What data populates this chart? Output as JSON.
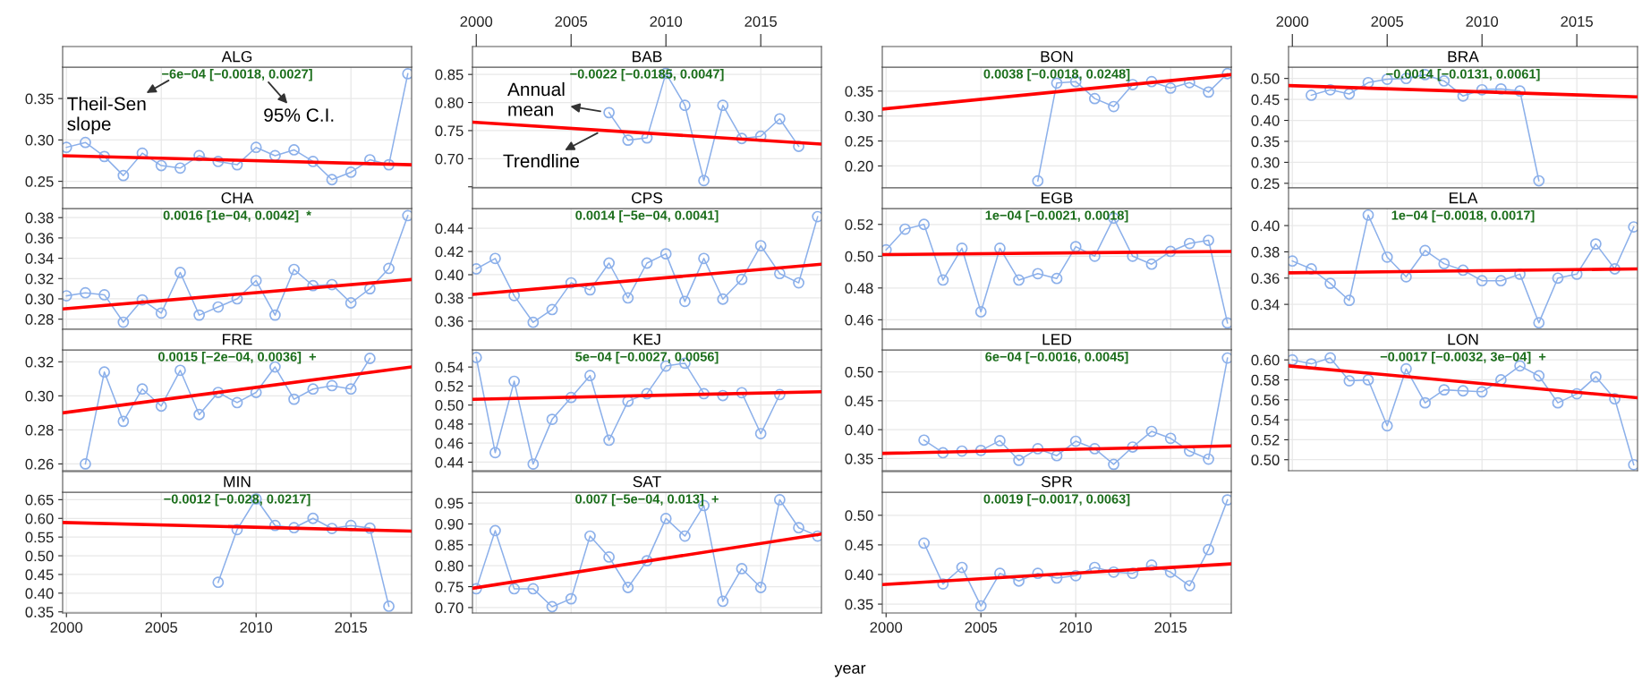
{
  "chart_data": [
    {
      "type": "line",
      "title": "ALG",
      "xlim": [
        1999.8,
        2018.2
      ],
      "xticks": [
        2000,
        2005,
        2010,
        2015
      ],
      "ylim": [
        0.242,
        0.388
      ],
      "yticks": [
        0.25,
        {
          "value": 0.3,
          "label": "0.30"
        },
        0.35
      ],
      "grid": true,
      "tick_labels": "y",
      "marker": "circle",
      "series": [
        {
          "color": "#8cb0ea",
          "x": [
            2000,
            2001,
            2002,
            2003,
            2004,
            2005,
            2006,
            2007,
            2008,
            2009,
            2010,
            2011,
            2012,
            2013,
            2014,
            2015,
            2016,
            2017,
            2018
          ],
          "values": [
            0.291,
            0.297,
            0.28,
            0.257,
            0.284,
            0.269,
            0.266,
            0.281,
            0.274,
            0.27,
            0.291,
            0.281,
            0.288,
            0.274,
            0.252,
            0.261,
            0.276,
            0.27,
            0.38
          ]
        },
        {
          "type": "line",
          "marker": "none",
          "color": "#ff0000",
          "x": [
            1999.8,
            2018.2
          ],
          "values": [
            0.281,
            0.27
          ]
        }
      ],
      "annotations": [
        "−6e−04 [−0.0018, 0.0027]",
        "Theil-Sen\nslope",
        "95% C.I."
      ]
    },
    {
      "type": "line",
      "title": "BAB",
      "xlim": [
        1999.8,
        2018.2
      ],
      "xticks": [
        2000,
        2005,
        2010,
        2015
      ],
      "x2lim": [
        1999.8,
        2018.2
      ],
      "x2ticks": [
        2000,
        2005,
        2010,
        2015
      ],
      "ylim": [
        0.648,
        0.863
      ],
      "yticks": [
        {
          "value": 0.65,
          "label": null
        },
        {
          "value": 0.7,
          "label": "0.70"
        },
        0.75,
        {
          "value": 0.8,
          "label": "0.80"
        },
        0.85
      ],
      "grid": true,
      "tick_labels": "y",
      "marker": "circle",
      "series": [
        {
          "color": "#8cb0ea",
          "x": [
            2007,
            2008,
            2009,
            2010,
            2011,
            2012,
            2013,
            2014,
            2015,
            2016,
            2017
          ],
          "values": [
            0.782,
            0.733,
            0.737,
            0.852,
            0.795,
            0.661,
            0.795,
            0.736,
            0.74,
            0.771,
            0.722
          ]
        },
        {
          "type": "line",
          "marker": "none",
          "color": "#ff0000",
          "x": [
            1999.8,
            2018.2
          ],
          "values": [
            0.765,
            0.726
          ]
        }
      ],
      "annotations": [
        "−0.0022 [−0.0185, 0.0047]",
        {
          "text": "Annual\nmean",
          "x": 2007,
          "y": 0.782
        },
        {
          "text": "Trendline",
          "x": 2006.8,
          "y": 0.753
        }
      ]
    },
    {
      "type": "line",
      "title": "BON",
      "xlim": [
        1999.8,
        2018.2
      ],
      "xticks": [
        2000,
        2005,
        2010,
        2015
      ],
      "ylim": [
        0.156,
        0.398
      ],
      "yticks": [
        {
          "value": 0.2,
          "label": "0.20"
        },
        0.25,
        {
          "value": 0.3,
          "label": "0.30"
        },
        0.35
      ],
      "grid": true,
      "tick_labels": "y",
      "marker": "circle",
      "series": [
        {
          "color": "#8cb0ea",
          "x": [
            2008,
            2009,
            2010,
            2011,
            2012,
            2013,
            2014,
            2015,
            2016,
            2017,
            2018
          ],
          "values": [
            0.17,
            0.366,
            0.369,
            0.335,
            0.319,
            0.363,
            0.369,
            0.356,
            0.367,
            0.348,
            0.385
          ]
        },
        {
          "type": "line",
          "marker": "none",
          "color": "#ff0000",
          "x": [
            1999.8,
            2018.2
          ],
          "values": [
            0.314,
            0.383
          ]
        }
      ],
      "annotations": [
        "0.0038 [−0.0018, 0.0248]"
      ]
    },
    {
      "type": "line",
      "title": "BRA",
      "xlim": [
        1999.8,
        2018.2
      ],
      "xticks": [
        2000,
        2005,
        2010,
        2015
      ],
      "x2lim": [
        1999.8,
        2018.2
      ],
      "x2ticks": [
        2000,
        2005,
        2010,
        2015
      ],
      "ylim": [
        0.239,
        0.527
      ],
      "yticks": [
        0.25,
        {
          "value": 0.3,
          "label": "0.30"
        },
        0.35,
        {
          "value": 0.4,
          "label": "0.40"
        },
        0.45,
        {
          "value": 0.5,
          "label": "0.50"
        }
      ],
      "grid": true,
      "tick_labels": "y",
      "marker": "circle",
      "series": [
        {
          "color": "#8cb0ea",
          "x": [
            2001,
            2002,
            2003,
            2004,
            2005,
            2006,
            2007,
            2008,
            2009,
            2010,
            2011,
            2012,
            2013
          ],
          "values": [
            0.46,
            0.473,
            0.463,
            0.49,
            0.498,
            0.5,
            0.509,
            0.494,
            0.458,
            0.473,
            0.475,
            0.47,
            0.256
          ]
        },
        {
          "type": "line",
          "marker": "none",
          "color": "#ff0000",
          "x": [
            1999.8,
            2018.2
          ],
          "values": [
            0.483,
            0.456
          ]
        }
      ],
      "annotations": [
        "−0.0014 [−0.0131, 0.0061]"
      ]
    },
    {
      "type": "line",
      "title": "CHA",
      "xlim": [
        1999.8,
        2018.2
      ],
      "xticks": [
        2000,
        2005,
        2010,
        2015
      ],
      "ylim": [
        0.27,
        0.389
      ],
      "yticks": [
        0.28,
        {
          "value": 0.3,
          "label": "0.30"
        },
        0.32,
        0.34,
        0.36,
        0.38
      ],
      "grid": true,
      "tick_labels": "y",
      "marker": "circle",
      "series": [
        {
          "color": "#8cb0ea",
          "x": [
            2000,
            2001,
            2002,
            2003,
            2004,
            2005,
            2006,
            2007,
            2008,
            2009,
            2010,
            2011,
            2012,
            2013,
            2014,
            2015,
            2016,
            2017,
            2018
          ],
          "values": [
            0.303,
            0.306,
            0.304,
            0.277,
            0.299,
            0.286,
            0.326,
            0.284,
            0.292,
            0.3,
            0.318,
            0.284,
            0.329,
            0.313,
            0.314,
            0.296,
            0.31,
            0.33,
            0.382
          ]
        },
        {
          "type": "line",
          "marker": "none",
          "color": "#ff0000",
          "x": [
            1999.8,
            2018.2
          ],
          "values": [
            0.29,
            0.319
          ]
        }
      ],
      "annotations": [
        "0.0016 [1e−04, 0.0042]  *"
      ]
    },
    {
      "type": "line",
      "title": "CPS",
      "xlim": [
        1999.8,
        2018.2
      ],
      "xticks": [
        2000,
        2005,
        2010,
        2015
      ],
      "ylim": [
        0.353,
        0.457
      ],
      "yticks": [
        0.36,
        0.38,
        {
          "value": 0.4,
          "label": "0.40"
        },
        0.42,
        0.44
      ],
      "grid": true,
      "tick_labels": "y",
      "marker": "circle",
      "series": [
        {
          "color": "#8cb0ea",
          "x": [
            2000,
            2001,
            2002,
            2003,
            2004,
            2005,
            2006,
            2007,
            2008,
            2009,
            2010,
            2011,
            2012,
            2013,
            2014,
            2015,
            2016,
            2017,
            2018
          ],
          "values": [
            0.405,
            0.414,
            0.382,
            0.359,
            0.37,
            0.393,
            0.387,
            0.41,
            0.38,
            0.41,
            0.418,
            0.377,
            0.414,
            0.379,
            0.396,
            0.425,
            0.401,
            0.393,
            0.45
          ]
        },
        {
          "type": "line",
          "marker": "none",
          "color": "#ff0000",
          "x": [
            1999.8,
            2018.2
          ],
          "values": [
            0.383,
            0.409
          ]
        }
      ],
      "annotations": [
        "0.0014 [−5e−04, 0.0041]"
      ]
    },
    {
      "type": "line",
      "title": "EGB",
      "xlim": [
        1999.8,
        2018.2
      ],
      "xticks": [
        2000,
        2005,
        2010,
        2015
      ],
      "ylim": [
        0.454,
        0.53
      ],
      "yticks": [
        0.46,
        0.48,
        {
          "value": 0.5,
          "label": "0.50"
        },
        0.52
      ],
      "grid": true,
      "tick_labels": "y",
      "marker": "circle",
      "series": [
        {
          "color": "#8cb0ea",
          "x": [
            2000,
            2001,
            2002,
            2003,
            2004,
            2005,
            2006,
            2007,
            2008,
            2009,
            2010,
            2011,
            2012,
            2013,
            2014,
            2015,
            2016,
            2017,
            2018
          ],
          "values": [
            0.504,
            0.517,
            0.52,
            0.485,
            0.505,
            0.465,
            0.505,
            0.485,
            0.489,
            0.486,
            0.506,
            0.5,
            0.524,
            0.5,
            0.495,
            0.503,
            0.508,
            0.51,
            0.458
          ]
        },
        {
          "type": "line",
          "marker": "none",
          "color": "#ff0000",
          "x": [
            1999.8,
            2018.2
          ],
          "values": [
            0.501,
            0.503
          ]
        }
      ],
      "annotations": [
        "1e−04 [−0.0021, 0.0018]"
      ]
    },
    {
      "type": "line",
      "title": "ELA",
      "xlim": [
        1999.8,
        2018.2
      ],
      "xticks": [
        2000,
        2005,
        2010,
        2015
      ],
      "ylim": [
        0.321,
        0.413
      ],
      "yticks": [
        0.34,
        0.36,
        0.38,
        {
          "value": 0.4,
          "label": "0.40"
        }
      ],
      "grid": true,
      "tick_labels": "y",
      "marker": "circle",
      "series": [
        {
          "color": "#8cb0ea",
          "x": [
            2000,
            2001,
            2002,
            2003,
            2004,
            2005,
            2006,
            2007,
            2008,
            2009,
            2010,
            2011,
            2012,
            2013,
            2014,
            2015,
            2016,
            2017,
            2018
          ],
          "values": [
            0.373,
            0.367,
            0.356,
            0.343,
            0.408,
            0.376,
            0.361,
            0.381,
            0.371,
            0.366,
            0.358,
            0.358,
            0.363,
            0.326,
            0.36,
            0.363,
            0.386,
            0.367,
            0.399
          ]
        },
        {
          "type": "line",
          "marker": "none",
          "color": "#ff0000",
          "x": [
            1999.8,
            2018.2
          ],
          "values": [
            0.364,
            0.367
          ]
        }
      ],
      "annotations": [
        "1e−04 [−0.0018, 0.0017]"
      ]
    },
    {
      "type": "line",
      "title": "FRE",
      "xlim": [
        1999.8,
        2018.2
      ],
      "xticks": [
        2000,
        2005,
        2010,
        2015
      ],
      "ylim": [
        0.256,
        0.327
      ],
      "yticks": [
        0.26,
        0.28,
        {
          "value": 0.3,
          "label": "0.30"
        },
        0.32
      ],
      "grid": true,
      "tick_labels": "y",
      "marker": "circle",
      "series": [
        {
          "color": "#8cb0ea",
          "x": [
            2001,
            2002,
            2003,
            2004,
            2005,
            2006,
            2007,
            2008,
            2009,
            2010,
            2011,
            2012,
            2013,
            2014,
            2015,
            2016
          ],
          "values": [
            0.26,
            0.314,
            0.285,
            0.304,
            0.294,
            0.315,
            0.289,
            0.302,
            0.296,
            0.302,
            0.317,
            0.298,
            0.304,
            0.306,
            0.304,
            0.322
          ]
        },
        {
          "type": "line",
          "marker": "none",
          "color": "#ff0000",
          "x": [
            1999.8,
            2018.2
          ],
          "values": [
            0.29,
            0.317
          ]
        }
      ],
      "annotations": [
        "0.0015 [−2e−04, 0.0036]  +"
      ]
    },
    {
      "type": "line",
      "title": "KEJ",
      "xlim": [
        1999.8,
        2018.2
      ],
      "xticks": [
        2000,
        2005,
        2010,
        2015
      ],
      "ylim": [
        0.431,
        0.558
      ],
      "yticks": [
        0.44,
        0.46,
        0.48,
        {
          "value": 0.5,
          "label": "0.50"
        },
        0.52,
        0.54
      ],
      "grid": true,
      "tick_labels": "y",
      "marker": "circle",
      "series": [
        {
          "color": "#8cb0ea",
          "x": [
            2000,
            2001,
            2002,
            2003,
            2004,
            2005,
            2006,
            2007,
            2008,
            2009,
            2010,
            2011,
            2012,
            2013,
            2014,
            2015,
            2016
          ],
          "values": [
            0.55,
            0.45,
            0.525,
            0.438,
            0.485,
            0.508,
            0.531,
            0.463,
            0.504,
            0.512,
            0.541,
            0.544,
            0.512,
            0.51,
            0.513,
            0.47,
            0.511
          ]
        },
        {
          "type": "line",
          "marker": "none",
          "color": "#ff0000",
          "x": [
            1999.8,
            2018.2
          ],
          "values": [
            0.506,
            0.514
          ]
        }
      ],
      "annotations": [
        "5e−04 [−0.0027, 0.0056]"
      ]
    },
    {
      "type": "line",
      "title": "LED",
      "xlim": [
        1999.8,
        2018.2
      ],
      "xticks": [
        2000,
        2005,
        2010,
        2015
      ],
      "ylim": [
        0.329,
        0.538
      ],
      "yticks": [
        0.35,
        {
          "value": 0.4,
          "label": "0.40"
        },
        0.45,
        {
          "value": 0.5,
          "label": "0.50"
        }
      ],
      "grid": true,
      "tick_labels": "y",
      "marker": "circle",
      "series": [
        {
          "color": "#8cb0ea",
          "x": [
            2002,
            2003,
            2004,
            2005,
            2006,
            2007,
            2008,
            2009,
            2010,
            2011,
            2012,
            2013,
            2014,
            2015,
            2016,
            2017,
            2018
          ],
          "values": [
            0.382,
            0.36,
            0.363,
            0.364,
            0.381,
            0.347,
            0.367,
            0.355,
            0.38,
            0.367,
            0.34,
            0.37,
            0.397,
            0.385,
            0.363,
            0.349,
            0.524
          ]
        },
        {
          "type": "line",
          "marker": "none",
          "color": "#ff0000",
          "x": [
            1999.8,
            2018.2
          ],
          "values": [
            0.359,
            0.372
          ]
        }
      ],
      "annotations": [
        "6e−04 [−0.0016, 0.0045]"
      ]
    },
    {
      "type": "line",
      "title": "LON",
      "xlim": [
        1999.8,
        2018.2
      ],
      "xticks": [
        2000,
        2005,
        2010,
        2015
      ],
      "ylim": [
        0.489,
        0.61
      ],
      "yticks": [
        {
          "value": 0.5,
          "label": "0.50"
        },
        0.52,
        0.54,
        0.56,
        0.58,
        {
          "value": 0.6,
          "label": "0.60"
        }
      ],
      "grid": true,
      "tick_labels": "y",
      "marker": "circle",
      "series": [
        {
          "color": "#8cb0ea",
          "x": [
            2000,
            2001,
            2002,
            2003,
            2004,
            2005,
            2006,
            2007,
            2008,
            2009,
            2010,
            2011,
            2012,
            2013,
            2014,
            2015,
            2016,
            2017,
            2018
          ],
          "values": [
            0.6,
            0.596,
            0.602,
            0.579,
            0.58,
            0.534,
            0.591,
            0.557,
            0.57,
            0.569,
            0.568,
            0.58,
            0.594,
            0.584,
            0.557,
            0.566,
            0.583,
            0.561,
            0.495
          ]
        },
        {
          "type": "line",
          "marker": "none",
          "color": "#ff0000",
          "x": [
            1999.8,
            2018.2
          ],
          "values": [
            0.594,
            0.562
          ]
        }
      ],
      "annotations": [
        "−0.0017 [−0.0032, 3e−04]  +"
      ]
    },
    {
      "type": "line",
      "title": "MIN",
      "xlim": [
        1999.8,
        2018.2
      ],
      "xticks": [
        2000,
        2005,
        2010,
        2015
      ],
      "ylim": [
        0.347,
        0.67
      ],
      "yticks": [
        0.35,
        {
          "value": 0.4,
          "label": "0.40"
        },
        0.45,
        {
          "value": 0.5,
          "label": "0.50"
        },
        0.55,
        {
          "value": 0.6,
          "label": "0.60"
        },
        0.65
      ],
      "grid": true,
      "marker": "circle",
      "series": [
        {
          "color": "#8cb0ea",
          "x": [
            2008,
            2009,
            2010,
            2011,
            2012,
            2013,
            2014,
            2015,
            2016,
            2017
          ],
          "values": [
            0.429,
            0.57,
            0.652,
            0.581,
            0.575,
            0.6,
            0.573,
            0.581,
            0.574,
            0.365
          ]
        },
        {
          "type": "line",
          "marker": "none",
          "color": "#ff0000",
          "x": [
            1999.8,
            2018.2
          ],
          "values": [
            0.589,
            0.566
          ]
        }
      ],
      "annotations": [
        "−0.0012 [−0.028, 0.0217]"
      ]
    },
    {
      "type": "line",
      "title": "SAT",
      "xlim": [
        1999.8,
        2018.2
      ],
      "xticks": [
        2000,
        2005,
        2010,
        2015
      ],
      "ylim": [
        0.687,
        0.976
      ],
      "yticks": [
        {
          "value": 0.7,
          "label": "0.70"
        },
        0.75,
        {
          "value": 0.8,
          "label": "0.80"
        },
        0.85,
        {
          "value": 0.9,
          "label": "0.90"
        },
        0.95
      ],
      "grid": true,
      "tick_labels": "y",
      "marker": "circle",
      "series": [
        {
          "color": "#8cb0ea",
          "x": [
            2000,
            2001,
            2002,
            2003,
            2004,
            2005,
            2006,
            2007,
            2008,
            2009,
            2010,
            2011,
            2012,
            2013,
            2014,
            2015,
            2016,
            2017,
            2018
          ],
          "values": [
            0.745,
            0.884,
            0.745,
            0.745,
            0.702,
            0.721,
            0.871,
            0.821,
            0.748,
            0.812,
            0.913,
            0.871,
            0.944,
            0.715,
            0.793,
            0.748,
            0.958,
            0.891,
            0.871
          ]
        },
        {
          "type": "line",
          "marker": "none",
          "color": "#ff0000",
          "x": [
            1999.8,
            2018.2
          ],
          "values": [
            0.746,
            0.876
          ]
        }
      ],
      "annotations": [
        "0.007 [−5e−04, 0.013]  +"
      ]
    },
    {
      "type": "line",
      "title": "SPR",
      "xlabel": "year",
      "xlim": [
        1999.8,
        2018.2
      ],
      "xticks": [
        2000,
        2005,
        2010,
        2015
      ],
      "ylim": [
        0.335,
        0.539
      ],
      "yticks": [
        0.35,
        {
          "value": 0.4,
          "label": "0.40"
        },
        0.45,
        {
          "value": 0.5,
          "label": "0.50"
        }
      ],
      "grid": true,
      "marker": "circle",
      "series": [
        {
          "color": "#8cb0ea",
          "x": [
            2002,
            2003,
            2004,
            2005,
            2006,
            2007,
            2008,
            2009,
            2010,
            2011,
            2012,
            2013,
            2014,
            2015,
            2016,
            2017,
            2018
          ],
          "values": [
            0.453,
            0.384,
            0.412,
            0.347,
            0.402,
            0.389,
            0.402,
            0.394,
            0.398,
            0.412,
            0.404,
            0.402,
            0.416,
            0.404,
            0.381,
            0.442,
            0.526
          ]
        },
        {
          "type": "line",
          "marker": "none",
          "color": "#ff0000",
          "x": [
            1999.8,
            2018.2
          ],
          "values": [
            0.383,
            0.418
          ]
        }
      ],
      "annotations": [
        "0.0019 [−0.0017, 0.0063]"
      ]
    }
  ]
}
